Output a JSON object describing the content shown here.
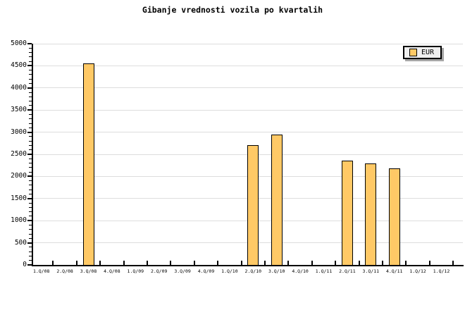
{
  "title": "Gibanje vrednosti vozila po kvartalih",
  "legend": {
    "label": "EUR",
    "swatch_color": "#FFC966",
    "background": "#EFEFEF",
    "border_color": "#000000",
    "shadow_color": "#A6A6A6",
    "position": "top-right"
  },
  "chart_data": {
    "type": "bar",
    "title": "Gibanje vrednosti vozila po kvartalih",
    "categories": [
      "1.Q/08",
      "2.Q/08",
      "3.Q/08",
      "4.Q/08",
      "1.Q/09",
      "2.Q/09",
      "3.Q/09",
      "4.Q/09",
      "1.Q/10",
      "2.Q/10",
      "3.Q/10",
      "4.Q/10",
      "1.Q/11",
      "2.Q/11",
      "3.Q/11",
      "4.Q/11",
      "1.Q/12",
      "1.Q/12"
    ],
    "series": [
      {
        "name": "EUR",
        "color": "#FFC966",
        "values": [
          null,
          null,
          4550,
          null,
          null,
          null,
          null,
          null,
          null,
          2700,
          2950,
          null,
          null,
          2350,
          2290,
          2180,
          null,
          null
        ]
      }
    ],
    "xlabel": "",
    "ylabel": "",
    "ylim": [
      0,
      5000
    ],
    "y_major_step": 500,
    "y_minor_step": 100,
    "grid": true,
    "gridline_color": "#DDDDDD",
    "axis_color": "#000000",
    "bar_border_color": "#000000",
    "legend_position": "top-right",
    "background": "#FFFFFF"
  }
}
